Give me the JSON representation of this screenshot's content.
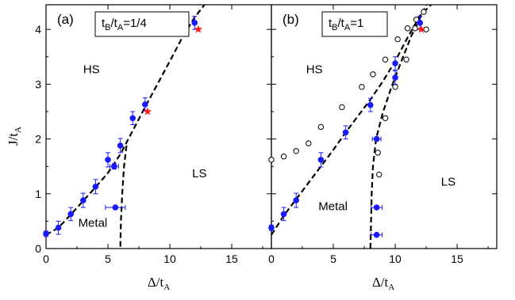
{
  "colors": {
    "filled_marker": "#1a1aff",
    "star_marker": "#ff1a1a",
    "open_marker": "#000000",
    "boundary_line": "#000000",
    "axis": "#000000"
  },
  "y_axis": {
    "label_main": "J/t",
    "label_sub": "A",
    "ticks": [
      0,
      1,
      2,
      3,
      4
    ],
    "ylim": [
      0,
      4.45
    ]
  },
  "x_axis": {
    "label_main": "Δ/t",
    "label_sub": "A",
    "ticks": [
      0,
      5,
      10,
      15
    ],
    "xlim": [
      0,
      18.2
    ]
  },
  "chart_data": [
    {
      "type": "scatter",
      "panel": "a",
      "panel_label": "(a)",
      "inset_label": {
        "prefix": "t",
        "sub1": "B",
        "mid": "/t",
        "sub2": "A",
        "value": "=1/4"
      },
      "regions": {
        "hs": "HS",
        "ls": "LS",
        "metal": "Metal"
      },
      "markers": {
        "filled_with_errorbars": [
          {
            "x": 0.0,
            "y": 0.27,
            "err": 0.05
          },
          {
            "x": 1.0,
            "y": 0.38,
            "err": 0.12
          },
          {
            "x": 2.0,
            "y": 0.63,
            "err": 0.12
          },
          {
            "x": 3.0,
            "y": 0.88,
            "err": 0.13
          },
          {
            "x": 4.0,
            "y": 1.13,
            "err": 0.13
          },
          {
            "x": 5.0,
            "y": 1.62,
            "err": 0.13
          },
          {
            "x": 5.5,
            "y": 1.5,
            "err": 0.05,
            "xerr": 0.35
          },
          {
            "x": 6.0,
            "y": 1.88,
            "err": 0.13
          },
          {
            "x": 5.6,
            "y": 0.75,
            "xerr": 0.8
          },
          {
            "x": 7.0,
            "y": 2.38,
            "err": 0.12
          },
          {
            "x": 8.0,
            "y": 2.63,
            "err": 0.12
          },
          {
            "x": 12.0,
            "y": 4.12,
            "err": 0.12
          }
        ],
        "stars": [
          {
            "x": 8.2,
            "y": 2.5
          },
          {
            "x": 12.3,
            "y": 4.0
          }
        ]
      },
      "boundary_curves": [
        {
          "points": [
            [
              0,
              0.25
            ],
            [
              1,
              0.38
            ],
            [
              2,
              0.62
            ],
            [
              3,
              0.87
            ],
            [
              4,
              1.12
            ],
            [
              5,
              1.38
            ],
            [
              6,
              1.72
            ],
            [
              7,
              2.15
            ],
            [
              8,
              2.58
            ],
            [
              9,
              3.0
            ],
            [
              10,
              3.42
            ],
            [
              11,
              3.85
            ],
            [
              12,
              4.22
            ],
            [
              12.8,
              4.45
            ]
          ]
        },
        {
          "points": [
            [
              6.5,
              1.88
            ],
            [
              6.3,
              1.5
            ],
            [
              6.15,
              1.0
            ],
            [
              6.05,
              0.5
            ],
            [
              6.0,
              0.0
            ]
          ]
        }
      ],
      "xlim": [
        0,
        18.2
      ],
      "ylim": [
        0,
        4.45
      ]
    },
    {
      "type": "scatter",
      "panel": "b",
      "panel_label": "(b)",
      "inset_label": {
        "prefix": "t",
        "sub1": "B",
        "mid": "/t",
        "sub2": "A",
        "value": "=1"
      },
      "regions": {
        "hs": "HS",
        "ls": "LS",
        "metal": "Metal"
      },
      "markers": {
        "filled_with_errorbars": [
          {
            "x": 0.0,
            "y": 0.38,
            "err": 0.05
          },
          {
            "x": 1.0,
            "y": 0.63,
            "err": 0.12
          },
          {
            "x": 2.0,
            "y": 0.88,
            "err": 0.13
          },
          {
            "x": 4.0,
            "y": 1.62,
            "err": 0.13
          },
          {
            "x": 6.0,
            "y": 2.12,
            "err": 0.12
          },
          {
            "x": 8.0,
            "y": 2.62,
            "err": 0.12
          },
          {
            "x": 8.5,
            "y": 2.0,
            "xerr": 0.35
          },
          {
            "x": 8.5,
            "y": 0.75,
            "xerr": 0.45
          },
          {
            "x": 8.5,
            "y": 0.25,
            "xerr": 0.45
          },
          {
            "x": 10.0,
            "y": 3.12,
            "err": 0.12
          },
          {
            "x": 10.0,
            "y": 3.38,
            "err": 0.12
          },
          {
            "x": 12.0,
            "y": 4.12,
            "err": 0.12
          }
        ],
        "stars": [
          {
            "x": 12.1,
            "y": 4.0
          }
        ],
        "open_circles": [
          {
            "x": 0.0,
            "y": 1.62
          },
          {
            "x": 1.0,
            "y": 1.68
          },
          {
            "x": 2.0,
            "y": 1.78
          },
          {
            "x": 3.0,
            "y": 1.92
          },
          {
            "x": 4.0,
            "y": 2.22
          },
          {
            "x": 5.7,
            "y": 2.58
          },
          {
            "x": 7.3,
            "y": 2.95
          },
          {
            "x": 8.2,
            "y": 3.18
          },
          {
            "x": 9.2,
            "y": 3.45
          },
          {
            "x": 10.2,
            "y": 3.82
          },
          {
            "x": 11.0,
            "y": 4.02
          },
          {
            "x": 11.7,
            "y": 4.18
          },
          {
            "x": 12.3,
            "y": 4.32
          },
          {
            "x": 11.6,
            "y": 4.02
          },
          {
            "x": 10.9,
            "y": 3.45
          },
          {
            "x": 10.0,
            "y": 2.95
          },
          {
            "x": 9.2,
            "y": 2.38
          },
          {
            "x": 8.6,
            "y": 1.75
          },
          {
            "x": 8.7,
            "y": 1.35
          },
          {
            "x": 12.5,
            "y": 4.0
          }
        ]
      },
      "boundary_curves": [
        {
          "points": [
            [
              0,
              0.25
            ],
            [
              1,
              0.6
            ],
            [
              2,
              0.9
            ],
            [
              3,
              1.2
            ],
            [
              4,
              1.5
            ],
            [
              5,
              1.8
            ],
            [
              6,
              2.12
            ],
            [
              7,
              2.42
            ],
            [
              8,
              2.72
            ],
            [
              9,
              3.05
            ],
            [
              10,
              3.42
            ],
            [
              11,
              3.85
            ],
            [
              12,
              4.25
            ],
            [
              12.9,
              4.45
            ]
          ]
        },
        {
          "points": [
            [
              8.0,
              0.0
            ],
            [
              8.05,
              0.5
            ],
            [
              8.1,
              1.0
            ],
            [
              8.2,
              1.5
            ],
            [
              8.45,
              2.0
            ],
            [
              9.0,
              2.48
            ],
            [
              9.7,
              2.95
            ],
            [
              10.5,
              3.42
            ],
            [
              11.3,
              3.88
            ],
            [
              12.1,
              4.25
            ],
            [
              12.5,
              4.45
            ]
          ]
        }
      ],
      "xlim": [
        0,
        18.2
      ],
      "ylim": [
        0,
        4.45
      ]
    }
  ]
}
